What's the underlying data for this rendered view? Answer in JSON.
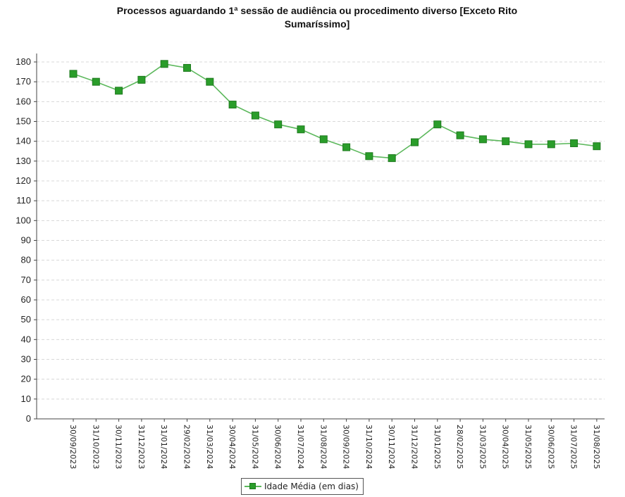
{
  "chart_data": {
    "type": "line",
    "title_line1": "Processos aguardando 1ª sessão de audiência ou procedimento diverso [Exceto Rito",
    "title_line2": "Sumaríssimo]",
    "categories": [
      "30/09/2023",
      "31/10/2023",
      "30/11/2023",
      "31/12/2023",
      "31/01/2024",
      "29/02/2024",
      "31/03/2024",
      "30/04/2024",
      "31/05/2024",
      "30/06/2024",
      "31/07/2024",
      "31/08/2024",
      "30/09/2024",
      "31/10/2024",
      "30/11/2024",
      "31/12/2024",
      "31/01/2025",
      "28/02/2025",
      "31/03/2025",
      "30/04/2025",
      "31/05/2025",
      "30/06/2025",
      "31/07/2025",
      "31/08/2025"
    ],
    "series": [
      {
        "name": "Idade Média (em dias)",
        "values": [
          174,
          170,
          165.5,
          171,
          179,
          177,
          170,
          158.5,
          153,
          148.5,
          146,
          141,
          137,
          132.5,
          131.5,
          139.5,
          148.5,
          143,
          141,
          140,
          138.5,
          138.5,
          139,
          137.5
        ]
      }
    ],
    "ylim": [
      0,
      180
    ],
    "yticks": [
      0,
      10,
      20,
      30,
      40,
      50,
      60,
      70,
      80,
      90,
      100,
      110,
      120,
      130,
      140,
      150,
      160,
      170,
      180
    ],
    "grid": true,
    "legend_position": "bottom-center",
    "colors": {
      "line": "#5cb85c",
      "marker": "#2a9d2a",
      "marker_border": "#1f7a1f",
      "grid": "#d8d8d8"
    }
  }
}
